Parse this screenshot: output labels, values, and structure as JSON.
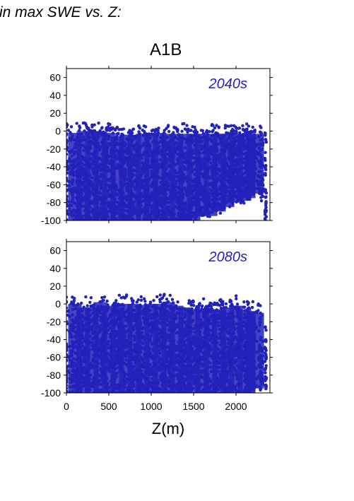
{
  "caption": "in max SWE vs. Z:",
  "colors": {
    "points": "#2222bb",
    "label": "#2222bb",
    "axis": "#000000"
  },
  "chart_data": [
    {
      "type": "scatter",
      "title": "A1B",
      "panel_label": "2040s",
      "xlabel": "",
      "ylabel": "",
      "xlim": [
        0,
        2400
      ],
      "ylim": [
        -100,
        70
      ],
      "x_ticks": [],
      "y_ticks": [
        -100,
        -80,
        -60,
        -40,
        -20,
        0,
        20,
        40,
        60
      ],
      "grid": false,
      "legend": "none",
      "profile": [
        [
          50,
          10,
          -100
        ],
        [
          150,
          12,
          -100
        ],
        [
          250,
          12,
          -100
        ],
        [
          350,
          12,
          -100
        ],
        [
          450,
          10,
          -100
        ],
        [
          550,
          6,
          -100
        ],
        [
          650,
          8,
          -100
        ],
        [
          750,
          8,
          -100
        ],
        [
          850,
          9,
          -100
        ],
        [
          950,
          10,
          -100
        ],
        [
          1050,
          10,
          -100
        ],
        [
          1150,
          9,
          -100
        ],
        [
          1250,
          9,
          -100
        ],
        [
          1350,
          9,
          -100
        ],
        [
          1450,
          9,
          -100
        ],
        [
          1550,
          9,
          -95
        ],
        [
          1650,
          9,
          -95
        ],
        [
          1750,
          9,
          -90
        ],
        [
          1850,
          9,
          -85
        ],
        [
          1950,
          9,
          -80
        ],
        [
          2050,
          9,
          -78
        ],
        [
          2150,
          9,
          -75
        ],
        [
          2200,
          9,
          -70
        ],
        [
          2300,
          2,
          -75
        ],
        [
          2350,
          2,
          -100
        ]
      ]
    },
    {
      "type": "scatter",
      "title": "",
      "panel_label": "2080s",
      "xlabel": "Z(m)",
      "ylabel": "",
      "xlim": [
        0,
        2400
      ],
      "ylim": [
        -100,
        70
      ],
      "x_ticks": [
        0,
        500,
        1000,
        1500,
        2000
      ],
      "y_ticks": [
        -100,
        -80,
        -60,
        -40,
        -20,
        0,
        20,
        40,
        60
      ],
      "grid": false,
      "legend": "none",
      "profile": [
        [
          50,
          12,
          -100
        ],
        [
          150,
          8,
          -100
        ],
        [
          250,
          8,
          -100
        ],
        [
          350,
          14,
          -100
        ],
        [
          450,
          10,
          -100
        ],
        [
          550,
          8,
          -100
        ],
        [
          650,
          12,
          -100
        ],
        [
          750,
          12,
          -100
        ],
        [
          850,
          11,
          -100
        ],
        [
          950,
          12,
          -100
        ],
        [
          1050,
          12,
          -100
        ],
        [
          1150,
          14,
          -100
        ],
        [
          1250,
          10,
          -100
        ],
        [
          1350,
          8,
          -100
        ],
        [
          1450,
          6,
          -100
        ],
        [
          1550,
          6,
          -100
        ],
        [
          1650,
          6,
          -100
        ],
        [
          1750,
          6,
          -100
        ],
        [
          1850,
          8,
          -100
        ],
        [
          1950,
          10,
          -100
        ],
        [
          2050,
          6,
          -100
        ],
        [
          2150,
          4,
          -100
        ],
        [
          2200,
          2,
          -95
        ],
        [
          2300,
          -10,
          -95
        ],
        [
          2350,
          -20,
          -100
        ]
      ]
    }
  ]
}
